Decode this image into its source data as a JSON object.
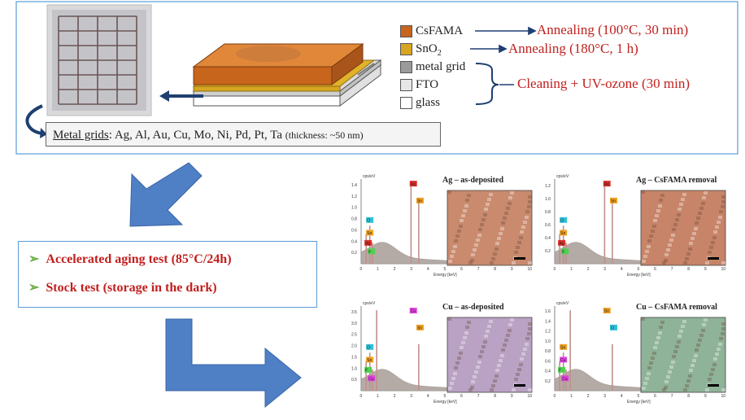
{
  "legend": {
    "items": [
      {
        "label": "CsFAMA",
        "color": "#c8651c"
      },
      {
        "label": "SnO",
        "sub": "2",
        "color": "#d8a520"
      },
      {
        "label": "metal grid",
        "color": "#9a9a9a"
      },
      {
        "label": "FTO",
        "color": "#e6e6e6"
      },
      {
        "label": "glass",
        "color": "#ffffff"
      }
    ]
  },
  "process": {
    "csfama_step": "Annealing (100°C, 30 min)",
    "sno2_step": "Annealing (180°C, 1 h)",
    "clean_step": "Cleaning + UV-ozone (30 min)"
  },
  "metal_grids": {
    "label": "Metal grids",
    "metals": ": Ag, Al, Au, Cu, Mo, Ni, Pd, Pt, Ta",
    "thickness": "(thickness: ~50 nm)"
  },
  "tests": {
    "aging": "Accelerated aging test (85°C/24h)",
    "stock": "Stock test (storage in the dark)"
  },
  "spectra": {
    "axis_unit_y": "cps/eV",
    "axis_label_x": "Energy [keV]",
    "x_ticks": [
      "0",
      "1",
      "2",
      "3",
      "4",
      "5",
      "6",
      "7",
      "8",
      "9",
      "10"
    ],
    "panels": [
      {
        "title": "Ag – as-deposited",
        "yticks": [
          "0.2",
          "0.4",
          "0.6",
          "0.8",
          "1.0",
          "1.2",
          "1.4"
        ],
        "peaks": [
          "Ag",
          "Sn",
          "O",
          "Sn",
          "Ag",
          "F"
        ],
        "map": "#c98a6e"
      },
      {
        "title": "Ag – CsFAMA removal",
        "yticks": [
          "0.2",
          "0.4",
          "0.6",
          "0.8",
          "1.0",
          "1.2"
        ],
        "peaks": [
          "Ag",
          "Sn",
          "O",
          "Sn",
          "Ag",
          "F"
        ],
        "map": "#c78468"
      },
      {
        "title": "Cu – as-deposited",
        "yticks": [
          "0.5",
          "1.0",
          "1.5",
          "2.0",
          "2.5",
          "3.0",
          "3.5"
        ],
        "peaks": [
          "Cu",
          "Sn",
          "O",
          "Sn",
          "F",
          "Cu"
        ],
        "map": "#b9a2c4"
      },
      {
        "title": "Cu – CsFAMA removal",
        "yticks": [
          "0.2",
          "0.4",
          "0.6",
          "0.8",
          "1.0",
          "1.2",
          "1.4",
          "1.6"
        ],
        "peaks": [
          "Sn",
          "O",
          "Sn",
          "Cu",
          "F",
          "Cu"
        ],
        "map": "#8fb398"
      }
    ]
  },
  "colors": {
    "frame": "#5b9bd5",
    "arrow": "#4f7fc4",
    "dark_arrow": "#1f3f72",
    "text_red": "#c0201e",
    "tick_green": "#70ad47"
  }
}
